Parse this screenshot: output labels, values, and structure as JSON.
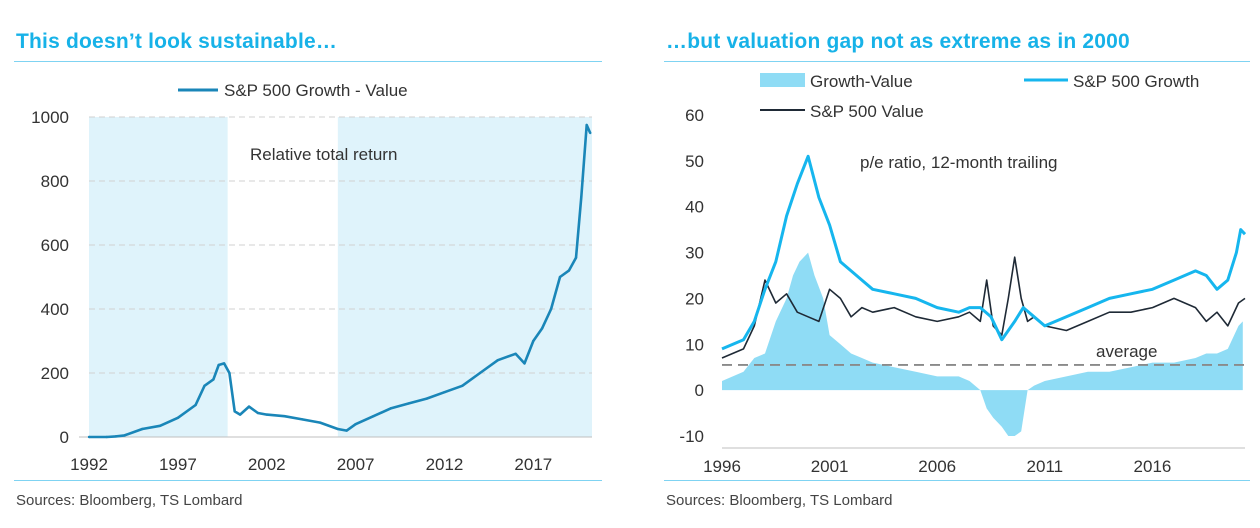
{
  "left": {
    "title": "This doesn’t look sustainable…",
    "source": "Sources: Bloomberg, TS Lombard"
  },
  "right": {
    "title": "…but valuation gap not as extreme as in 2000",
    "source": "Sources: Bloomberg, TS Lombard"
  },
  "colors": {
    "title": "#17b2e8",
    "shade": "#dff3fb",
    "relative_line": "#1a86b8",
    "growth_line": "#16b6ee",
    "value_line": "#1f2a36",
    "gap_area": "#8fdcf5",
    "average_line": "#8a8a8a",
    "rule": "#7fd3f2"
  },
  "chart_data": [
    {
      "type": "line",
      "title": "",
      "legend": {
        "position": "top-center"
      },
      "annotation": "Relative total return",
      "xlim": [
        1992,
        2020.3
      ],
      "ylim": [
        0,
        1000
      ],
      "xticks": [
        "1992",
        "1997",
        "2002",
        "2007",
        "2012",
        "2017"
      ],
      "yticks": [
        "0",
        "200",
        "400",
        "600",
        "800",
        "1000"
      ],
      "shaded_periods": [
        [
          1992,
          1999.8
        ],
        [
          2006,
          2020.3
        ]
      ],
      "grid": "horizontal dashed",
      "series": [
        {
          "name": "S&P 500  Growth - Value",
          "x": [
            1992,
            1993,
            1993.5,
            1994,
            1995,
            1996,
            1997,
            1998,
            1998.5,
            1999,
            1999.3,
            1999.6,
            1999.9,
            2000.2,
            2000.5,
            2001,
            2001.5,
            2002,
            2003,
            2004,
            2005,
            2006,
            2006.5,
            2007,
            2008,
            2009,
            2010,
            2011,
            2012,
            2013,
            2014,
            2015,
            2016,
            2016.5,
            2017,
            2017.5,
            2018,
            2018.5,
            2019,
            2019.4,
            2019.7,
            2020,
            2020.2
          ],
          "y": [
            0,
            0,
            2,
            5,
            25,
            35,
            60,
            100,
            160,
            180,
            225,
            230,
            200,
            80,
            70,
            95,
            75,
            70,
            65,
            55,
            45,
            25,
            20,
            40,
            65,
            90,
            105,
            120,
            140,
            160,
            200,
            240,
            260,
            230,
            300,
            340,
            400,
            500,
            520,
            560,
            750,
            975,
            950
          ]
        }
      ]
    },
    {
      "type": "line",
      "title": "",
      "legend": {
        "position": "top"
      },
      "annotation": "p/e ratio, 12-month trailing",
      "average_label": "average",
      "average_value": 5.5,
      "xlim": [
        1996,
        2020.3
      ],
      "ylim": [
        -10,
        60
      ],
      "xticks": [
        "1996",
        "2001",
        "2006",
        "2011",
        "2016"
      ],
      "yticks": [
        "-10",
        "0",
        "10",
        "20",
        "30",
        "40",
        "50",
        "60"
      ],
      "grid": "off",
      "series": [
        {
          "name": "Growth-Value",
          "kind": "area",
          "x": [
            1996,
            1997,
            1997.5,
            1998,
            1998.5,
            1999,
            1999.3,
            1999.6,
            2000,
            2000.3,
            2000.7,
            2001,
            2001.5,
            2002,
            2002.5,
            2003,
            2004,
            2005,
            2006,
            2007,
            2007.5,
            2008,
            2008.3,
            2008.6,
            2009,
            2009.3,
            2009.6,
            2009.9,
            2010.2,
            2010.5,
            2011,
            2012,
            2013,
            2014,
            2015,
            2016,
            2017,
            2018,
            2018.5,
            2019,
            2019.5,
            2020,
            2020.2
          ],
          "y": [
            2,
            4,
            7,
            8,
            15,
            20,
            25,
            28,
            30,
            25,
            20,
            12,
            10,
            8,
            7,
            6,
            5,
            4,
            3,
            3,
            2,
            0,
            -4,
            -6,
            -8,
            -10,
            -10,
            -9,
            0,
            1,
            2,
            3,
            4,
            4,
            5,
            6,
            6,
            7,
            8,
            8,
            9,
            14,
            15
          ]
        },
        {
          "name": "S&P 500 Growth",
          "kind": "line",
          "x": [
            1996,
            1997,
            1997.5,
            1998,
            1998.5,
            1999,
            1999.5,
            2000,
            2000.5,
            2001,
            2001.5,
            2002,
            2002.5,
            2003,
            2004,
            2005,
            2006,
            2007,
            2007.5,
            2008,
            2008.5,
            2009,
            2009.3,
            2009.6,
            2010,
            2010.5,
            2011,
            2012,
            2013,
            2014,
            2015,
            2016,
            2017,
            2018,
            2018.5,
            2019,
            2019.5,
            2019.9,
            2020.1,
            2020.3
          ],
          "y": [
            9,
            11,
            15,
            22,
            28,
            38,
            45,
            51,
            42,
            36,
            28,
            26,
            24,
            22,
            21,
            20,
            18,
            17,
            18,
            18,
            16,
            11,
            13,
            15,
            18,
            16,
            14,
            16,
            18,
            20,
            21,
            22,
            24,
            26,
            25,
            22,
            24,
            30,
            35,
            34
          ]
        },
        {
          "name": "S&P 500 Value",
          "kind": "line",
          "x": [
            1996,
            1997,
            1997.5,
            1998,
            1998.5,
            1999,
            1999.5,
            2000,
            2000.5,
            2001,
            2001.5,
            2002,
            2002.5,
            2003,
            2004,
            2005,
            2006,
            2007,
            2007.5,
            2008,
            2008.3,
            2008.6,
            2009,
            2009.3,
            2009.6,
            2009.9,
            2010.2,
            2010.5,
            2011,
            2012,
            2013,
            2014,
            2015,
            2016,
            2017,
            2018,
            2018.5,
            2019,
            2019.5,
            2020,
            2020.3
          ],
          "y": [
            7,
            9,
            14,
            24,
            19,
            21,
            17,
            16,
            15,
            22,
            20,
            16,
            18,
            17,
            18,
            16,
            15,
            16,
            17,
            15,
            24,
            14,
            12,
            20,
            29,
            20,
            15,
            16,
            14,
            13,
            15,
            17,
            17,
            18,
            20,
            18,
            15,
            17,
            14,
            19,
            20
          ]
        }
      ]
    }
  ]
}
